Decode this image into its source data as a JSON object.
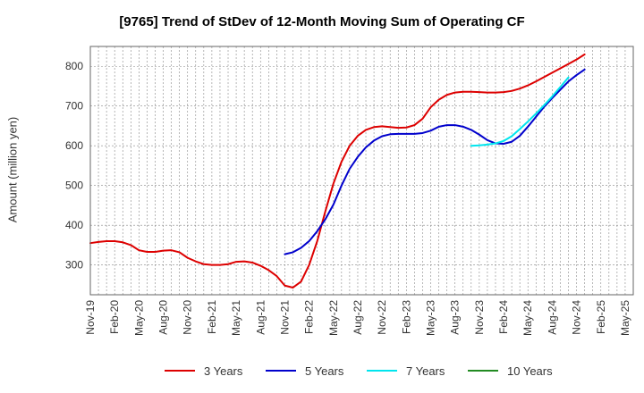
{
  "chart_data": {
    "type": "line",
    "title": "[9765]  Trend of StDev of 12-Month Moving Sum of Operating CF",
    "ylabel": "Amount (million yen)",
    "xlabel": "",
    "ylim": [
      225,
      850
    ],
    "yticks": [
      300,
      400,
      500,
      600,
      700,
      800
    ],
    "x_tick_labels": [
      "Nov-19",
      "Feb-20",
      "May-20",
      "Aug-20",
      "Nov-20",
      "Feb-21",
      "May-21",
      "Aug-21",
      "Nov-21",
      "Feb-22",
      "May-22",
      "Aug-22",
      "Nov-22",
      "Feb-23",
      "May-23",
      "Aug-23",
      "Nov-23",
      "Feb-24",
      "May-24",
      "Aug-24",
      "Nov-24",
      "Feb-25",
      "May-25"
    ],
    "x_months": [
      "2019-11",
      "2019-12",
      "2020-01",
      "2020-02",
      "2020-03",
      "2020-04",
      "2020-05",
      "2020-06",
      "2020-07",
      "2020-08",
      "2020-09",
      "2020-10",
      "2020-11",
      "2020-12",
      "2021-01",
      "2021-02",
      "2021-03",
      "2021-04",
      "2021-05",
      "2021-06",
      "2021-07",
      "2021-08",
      "2021-09",
      "2021-10",
      "2021-11",
      "2021-12",
      "2022-01",
      "2022-02",
      "2022-03",
      "2022-04",
      "2022-05",
      "2022-06",
      "2022-07",
      "2022-08",
      "2022-09",
      "2022-10",
      "2022-11",
      "2022-12",
      "2023-01",
      "2023-02",
      "2023-03",
      "2023-04",
      "2023-05",
      "2023-06",
      "2023-07",
      "2023-08",
      "2023-09",
      "2023-10",
      "2023-11",
      "2023-12",
      "2024-01",
      "2024-02",
      "2024-03",
      "2024-04",
      "2024-05",
      "2024-06",
      "2024-07",
      "2024-08",
      "2024-09",
      "2024-10",
      "2024-11",
      "2024-12",
      "2025-01",
      "2025-02",
      "2025-03",
      "2025-04",
      "2025-05",
      "2025-06"
    ],
    "grid": true,
    "legend_position": "bottom",
    "series": [
      {
        "name": "3 Years",
        "color": "#dd0000",
        "start": "2019-11",
        "values": [
          355,
          358,
          360,
          360,
          357,
          350,
          337,
          333,
          333,
          336,
          337,
          332,
          318,
          309,
          302,
          300,
          300,
          302,
          308,
          309,
          306,
          298,
          287,
          272,
          248,
          243,
          258,
          300,
          360,
          435,
          505,
          560,
          600,
          625,
          640,
          647,
          649,
          647,
          645,
          646,
          652,
          668,
          697,
          716,
          728,
          734,
          736,
          736,
          735,
          734,
          734,
          735,
          738,
          744,
          752,
          762,
          773,
          784,
          795,
          806,
          817,
          830
        ]
      },
      {
        "name": "5 Years",
        "color": "#0000cc",
        "start": "2021-11",
        "values": [
          327,
          332,
          343,
          360,
          385,
          415,
          452,
          500,
          542,
          572,
          596,
          613,
          624,
          629,
          630,
          630,
          630,
          632,
          638,
          648,
          652,
          652,
          648,
          640,
          628,
          614,
          606,
          605,
          610,
          625,
          648,
          673,
          698,
          720,
          741,
          762,
          778,
          792
        ]
      },
      {
        "name": "7 Years",
        "color": "#00e5ee",
        "start": "2023-10",
        "values": [
          600,
          601,
          603,
          606,
          612,
          624,
          642,
          661,
          681,
          702,
          724,
          748,
          772
        ]
      },
      {
        "name": "10 Years",
        "color": "#228b22",
        "start": "2023-10",
        "values": []
      }
    ]
  }
}
